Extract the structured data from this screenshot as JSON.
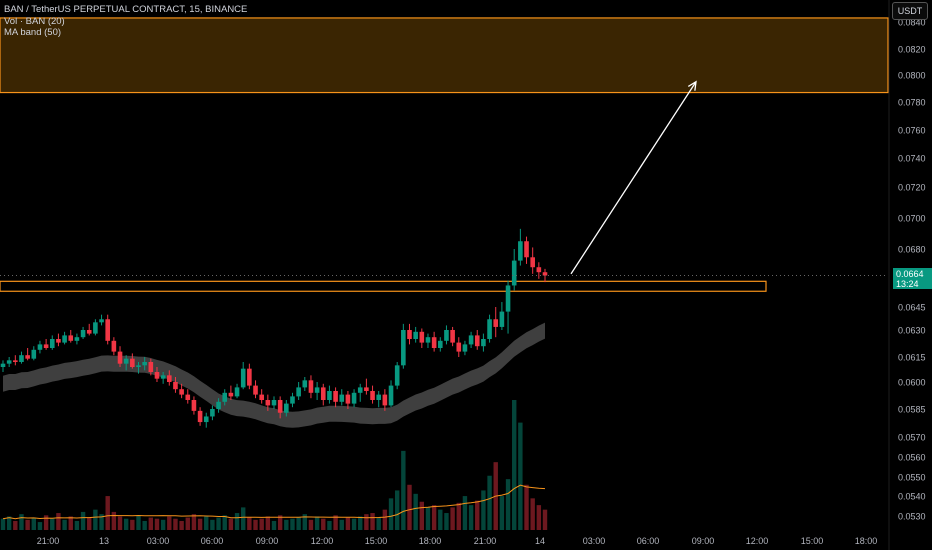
{
  "legend": {
    "symbol_line": "BAN / TetherUS PERPETUAL CONTRACT, 15, BINANCE",
    "volume_line": "Vol · BAN (20)",
    "ma_line": "MA band (50)"
  },
  "currency_button": "USDT",
  "last_price": {
    "price": "0.0664",
    "countdown": "13:24"
  },
  "colors": {
    "up": "#089981",
    "down": "#f23645",
    "zone_border": "#f7931a",
    "zone_fill": "#3a2502",
    "band": "#4a4a4a",
    "volume_ma": "#f7931a",
    "arrow": "#ffffff",
    "background": "#000000"
  },
  "chart_data": {
    "type": "candlestick",
    "interval": "15",
    "y_axis": {
      "ticks": [
        "0.0840",
        "0.0820",
        "0.0800",
        "0.0780",
        "0.0760",
        "0.0740",
        "0.0720",
        "0.0700",
        "0.0680",
        "0.0645",
        "0.0630",
        "0.0615",
        "0.0600",
        "0.0585",
        "0.0570",
        "0.0560",
        "0.0550",
        "0.0540",
        "0.0530"
      ],
      "scale": "log"
    },
    "x_axis": {
      "ticks": [
        "21:00",
        "13",
        "03:00",
        "06:00",
        "09:00",
        "12:00",
        "15:00",
        "18:00",
        "21:00",
        "14",
        "03:00",
        "06:00",
        "09:00",
        "12:00",
        "15:00",
        "18:00"
      ]
    },
    "target_zone": {
      "low": 0.0787,
      "high": 0.0843
    },
    "support_zone": {
      "low": 0.06545,
      "high": 0.06605
    },
    "arrow": {
      "from": 0.0665,
      "to": 0.0795
    },
    "current_price": 0.0664,
    "series_ohlc": [
      [
        0.0609,
        0.0613,
        0.0606,
        0.0611
      ],
      [
        0.0611,
        0.0615,
        0.0609,
        0.0613
      ],
      [
        0.0613,
        0.0616,
        0.061,
        0.0612
      ],
      [
        0.0612,
        0.0618,
        0.0611,
        0.0616
      ],
      [
        0.0616,
        0.062,
        0.0613,
        0.0614
      ],
      [
        0.0614,
        0.0621,
        0.0613,
        0.0619
      ],
      [
        0.0619,
        0.0624,
        0.0617,
        0.0622
      ],
      [
        0.0622,
        0.0625,
        0.0619,
        0.062
      ],
      [
        0.062,
        0.0627,
        0.0619,
        0.0625
      ],
      [
        0.0625,
        0.0628,
        0.0621,
        0.0623
      ],
      [
        0.0623,
        0.0629,
        0.0622,
        0.0627
      ],
      [
        0.0627,
        0.063,
        0.0623,
        0.0624
      ],
      [
        0.0624,
        0.0628,
        0.0622,
        0.0626
      ],
      [
        0.0626,
        0.0632,
        0.0625,
        0.063
      ],
      [
        0.063,
        0.0634,
        0.0627,
        0.0628
      ],
      [
        0.0628,
        0.0637,
        0.0627,
        0.0635
      ],
      [
        0.0635,
        0.064,
        0.0633,
        0.0637
      ],
      [
        0.0637,
        0.064,
        0.0622,
        0.0624
      ],
      [
        0.0624,
        0.0626,
        0.0616,
        0.0618
      ],
      [
        0.0618,
        0.0621,
        0.0609,
        0.0611
      ],
      [
        0.0611,
        0.0616,
        0.0607,
        0.0614
      ],
      [
        0.0614,
        0.0617,
        0.0608,
        0.0609
      ],
      [
        0.0609,
        0.0612,
        0.0605,
        0.061
      ],
      [
        0.061,
        0.0615,
        0.0607,
        0.0612
      ],
      [
        0.0612,
        0.0614,
        0.0604,
        0.0606
      ],
      [
        0.0606,
        0.0609,
        0.06,
        0.0602
      ],
      [
        0.0602,
        0.0606,
        0.0599,
        0.0604
      ],
      [
        0.0604,
        0.0607,
        0.0598,
        0.06
      ],
      [
        0.06,
        0.0603,
        0.0594,
        0.0596
      ],
      [
        0.0596,
        0.0599,
        0.0591,
        0.0593
      ],
      [
        0.0593,
        0.0596,
        0.0588,
        0.059
      ],
      [
        0.059,
        0.0592,
        0.0582,
        0.0584
      ],
      [
        0.0584,
        0.0586,
        0.0576,
        0.0578
      ],
      [
        0.0578,
        0.0583,
        0.0575,
        0.0581
      ],
      [
        0.0581,
        0.0587,
        0.0579,
        0.0585
      ],
      [
        0.0585,
        0.0591,
        0.0583,
        0.0589
      ],
      [
        0.0589,
        0.0596,
        0.0587,
        0.0594
      ],
      [
        0.0594,
        0.0598,
        0.059,
        0.0592
      ],
      [
        0.0592,
        0.0599,
        0.0591,
        0.0597
      ],
      [
        0.0597,
        0.0612,
        0.0596,
        0.0608
      ],
      [
        0.0608,
        0.0611,
        0.0596,
        0.0598
      ],
      [
        0.0598,
        0.0601,
        0.0591,
        0.0593
      ],
      [
        0.0593,
        0.0596,
        0.0588,
        0.059
      ],
      [
        0.059,
        0.0593,
        0.0584,
        0.0587
      ],
      [
        0.0587,
        0.0592,
        0.0585,
        0.059
      ],
      [
        0.059,
        0.0592,
        0.058,
        0.0583
      ],
      [
        0.0583,
        0.059,
        0.0581,
        0.0588
      ],
      [
        0.0588,
        0.0594,
        0.0586,
        0.0592
      ],
      [
        0.0592,
        0.06,
        0.059,
        0.0597
      ],
      [
        0.0597,
        0.0603,
        0.0595,
        0.0601
      ],
      [
        0.0601,
        0.0604,
        0.0591,
        0.0594
      ],
      [
        0.0594,
        0.06,
        0.059,
        0.0597
      ],
      [
        0.0597,
        0.0599,
        0.0587,
        0.059
      ],
      [
        0.059,
        0.0598,
        0.0588,
        0.0595
      ],
      [
        0.0595,
        0.0597,
        0.0586,
        0.0589
      ],
      [
        0.0589,
        0.0596,
        0.0587,
        0.0593
      ],
      [
        0.0593,
        0.0595,
        0.0585,
        0.0588
      ],
      [
        0.0588,
        0.0596,
        0.0586,
        0.0594
      ],
      [
        0.0594,
        0.0599,
        0.0589,
        0.0597
      ],
      [
        0.0597,
        0.0602,
        0.0593,
        0.0595
      ],
      [
        0.0595,
        0.0598,
        0.0588,
        0.059
      ],
      [
        0.059,
        0.0595,
        0.0586,
        0.0593
      ],
      [
        0.0593,
        0.0596,
        0.0584,
        0.0587
      ],
      [
        0.0587,
        0.0601,
        0.0586,
        0.0598
      ],
      [
        0.0598,
        0.0612,
        0.0596,
        0.061
      ],
      [
        0.061,
        0.0634,
        0.0608,
        0.063
      ],
      [
        0.063,
        0.0634,
        0.0622,
        0.0625
      ],
      [
        0.0625,
        0.0632,
        0.0623,
        0.0629
      ],
      [
        0.0629,
        0.0631,
        0.062,
        0.0623
      ],
      [
        0.0623,
        0.0628,
        0.062,
        0.0626
      ],
      [
        0.0626,
        0.0629,
        0.0618,
        0.062
      ],
      [
        0.062,
        0.0626,
        0.0618,
        0.0624
      ],
      [
        0.0624,
        0.0633,
        0.0622,
        0.063
      ],
      [
        0.063,
        0.0632,
        0.0621,
        0.0623
      ],
      [
        0.0623,
        0.0626,
        0.0615,
        0.0618
      ],
      [
        0.0618,
        0.0624,
        0.0616,
        0.0622
      ],
      [
        0.0622,
        0.0629,
        0.062,
        0.0627
      ],
      [
        0.0627,
        0.063,
        0.0619,
        0.0621
      ],
      [
        0.0621,
        0.0628,
        0.0618,
        0.0625
      ],
      [
        0.0625,
        0.064,
        0.0623,
        0.0637
      ],
      [
        0.0637,
        0.0645,
        0.0626,
        0.0632
      ],
      [
        0.0632,
        0.0648,
        0.063,
        0.0642
      ],
      [
        0.0642,
        0.0661,
        0.0628,
        0.0658
      ],
      [
        0.0658,
        0.068,
        0.0655,
        0.0673
      ],
      [
        0.0673,
        0.0693,
        0.067,
        0.0685
      ],
      [
        0.0685,
        0.0688,
        0.0671,
        0.0675
      ],
      [
        0.0675,
        0.0681,
        0.0665,
        0.0669
      ],
      [
        0.0669,
        0.0672,
        0.0662,
        0.0666
      ],
      [
        0.0666,
        0.0668,
        0.066,
        0.0664
      ]
    ],
    "volume": [
      10,
      12,
      8,
      14,
      9,
      11,
      7,
      13,
      10,
      15,
      9,
      12,
      8,
      16,
      11,
      18,
      14,
      30,
      16,
      12,
      10,
      9,
      13,
      8,
      11,
      10,
      9,
      12,
      10,
      8,
      11,
      14,
      10,
      12,
      9,
      11,
      13,
      10,
      15,
      20,
      11,
      9,
      10,
      12,
      8,
      13,
      9,
      10,
      11,
      14,
      9,
      12,
      10,
      8,
      13,
      9,
      11,
      10,
      12,
      14,
      15,
      11,
      18,
      28,
      35,
      70,
      40,
      32,
      25,
      20,
      22,
      18,
      15,
      20,
      24,
      30,
      22,
      26,
      35,
      48,
      60,
      30,
      45,
      115,
      95,
      40,
      28,
      22,
      18
    ],
    "series_names": [
      "BAN / TetherUS PERPETUAL CONTRACT",
      "Vol · BAN (20)",
      "MA band (50)"
    ]
  }
}
